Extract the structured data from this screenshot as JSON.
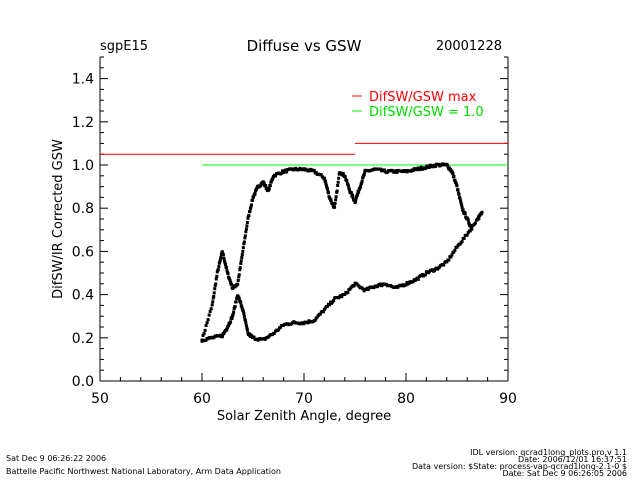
{
  "header": {
    "site": "sgpE15",
    "title": "Diffuse vs GSW",
    "date": "20001228"
  },
  "footer": {
    "left_line1": "Sat Dec  9 06:26:22 2006",
    "left_line2": "Battelle Pacific Northwest National Laboratory, Arm Data Application",
    "right_line1": "IDL version: qcrad1long_plots.pro,v 1.1",
    "right_line2": "Date: 2006/12/01 16:37:51",
    "right_line3": "Data version: $State: process-vap-qcrad1long-2.1-0 $",
    "right_line4": "Date: Sat Dec  9 06:26:05 2006"
  },
  "colors": {
    "max_line": "#ff0000",
    "unity_line": "#00ff00",
    "points": "#000000"
  },
  "chart_data": {
    "type": "scatter",
    "title": "Diffuse vs GSW",
    "xlabel": "Solar Zenith Angle, degree",
    "ylabel": "DifSW/IR Corrected GSW",
    "xlim": [
      50,
      90
    ],
    "ylim": [
      0,
      1.5
    ],
    "xticks": [
      "50",
      "60",
      "70",
      "80",
      "90"
    ],
    "yticks": [
      "0.0",
      "0.2",
      "0.4",
      "0.6",
      "0.8",
      "1.0",
      "1.2",
      "1.4"
    ],
    "legend": {
      "placement": "top-right",
      "entries": [
        "DifSW/GSW max",
        "DifSW/GSW = 1.0"
      ]
    },
    "reference_lines": [
      {
        "name": "DifSW/GSW max",
        "segments": [
          {
            "x": [
              50,
              75
            ],
            "y": 1.05
          },
          {
            "x": [
              75,
              90
            ],
            "y": 1.1
          }
        ]
      },
      {
        "name": "DifSW/GSW = 1.0",
        "segments": [
          {
            "x": [
              60,
              90
            ],
            "y": 1.0
          }
        ]
      }
    ],
    "series": [
      {
        "name": "upper branch",
        "x": [
          60,
          61,
          61.5,
          62,
          62.5,
          63,
          63.5,
          64,
          64.5,
          65,
          65.5,
          66,
          66.5,
          67,
          68,
          69,
          70,
          71,
          72,
          72.5,
          73,
          73.5,
          74,
          74.5,
          75,
          75.5,
          76,
          77,
          78,
          79,
          80,
          81,
          82,
          83,
          84,
          84.5,
          85,
          85.5,
          86,
          86.5
        ],
        "y": [
          0.19,
          0.35,
          0.5,
          0.6,
          0.5,
          0.43,
          0.45,
          0.6,
          0.75,
          0.85,
          0.9,
          0.92,
          0.88,
          0.95,
          0.97,
          0.98,
          0.98,
          0.97,
          0.94,
          0.85,
          0.8,
          0.97,
          0.95,
          0.88,
          0.83,
          0.9,
          0.97,
          0.98,
          0.97,
          0.97,
          0.97,
          0.98,
          0.99,
          1.0,
          1.0,
          0.97,
          0.9,
          0.8,
          0.75,
          0.7
        ]
      },
      {
        "name": "lower branch",
        "x": [
          60,
          61,
          62,
          62.5,
          63,
          63.5,
          64,
          64.5,
          65,
          66,
          67,
          68,
          69,
          70,
          71,
          72,
          73,
          74,
          75,
          76,
          77,
          78,
          79,
          80,
          81,
          82,
          83,
          84,
          85,
          86,
          87,
          87.5
        ],
        "y": [
          0.19,
          0.2,
          0.21,
          0.25,
          0.3,
          0.4,
          0.33,
          0.22,
          0.2,
          0.19,
          0.22,
          0.26,
          0.27,
          0.27,
          0.28,
          0.33,
          0.38,
          0.4,
          0.45,
          0.42,
          0.44,
          0.45,
          0.43,
          0.45,
          0.47,
          0.5,
          0.52,
          0.55,
          0.62,
          0.68,
          0.75,
          0.78
        ]
      }
    ]
  }
}
